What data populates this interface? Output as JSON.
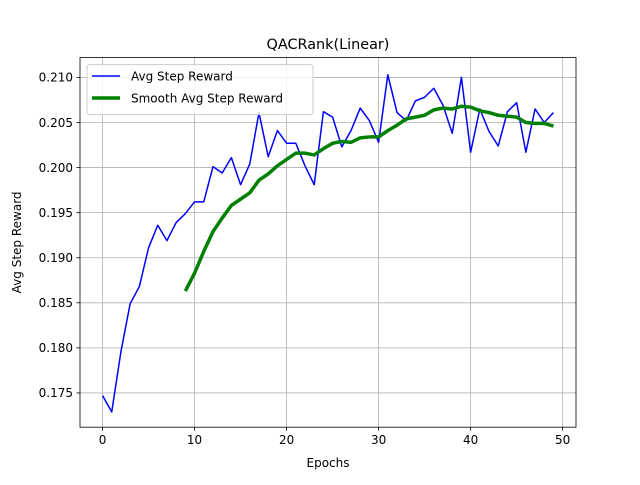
{
  "chart_data": {
    "type": "line",
    "title": "QACRank(Linear)",
    "xlabel": "Epochs",
    "ylabel": "Avg Step Reward",
    "xlim": [
      -2.45,
      51.45
    ],
    "ylim": [
      0.1712,
      0.2122
    ],
    "grid": true,
    "legend_position": "upper-left",
    "x_ticks": [
      0,
      10,
      20,
      30,
      40,
      50
    ],
    "y_ticks": [
      0.175,
      0.18,
      0.185,
      0.19,
      0.195,
      0.2,
      0.205,
      0.21
    ],
    "y_tick_labels": [
      "0.175",
      "0.180",
      "0.185",
      "0.190",
      "0.195",
      "0.200",
      "0.205",
      "0.210"
    ],
    "series": [
      {
        "name": "Avg Step Reward",
        "color": "#0000ff",
        "x": [
          0,
          1,
          2,
          3,
          4,
          5,
          6,
          7,
          8,
          9,
          10,
          11,
          12,
          13,
          14,
          15,
          16,
          17,
          18,
          19,
          20,
          21,
          22,
          23,
          24,
          25,
          26,
          27,
          28,
          29,
          30,
          31,
          32,
          33,
          34,
          35,
          36,
          37,
          38,
          39,
          40,
          41,
          42,
          43,
          44,
          45,
          46,
          47,
          48,
          49
        ],
        "values": [
          0.1747,
          0.1729,
          0.1796,
          0.1849,
          0.1868,
          0.1911,
          0.1936,
          0.1919,
          0.1939,
          0.1949,
          0.1962,
          0.1962,
          0.2001,
          0.1994,
          0.2011,
          0.1981,
          0.2004,
          0.2061,
          0.2012,
          0.2041,
          0.2027,
          0.2027,
          0.2002,
          0.1981,
          0.2062,
          0.2056,
          0.2023,
          0.2041,
          0.2066,
          0.2052,
          0.2028,
          0.2103,
          0.2061,
          0.2052,
          0.2074,
          0.2078,
          0.2088,
          0.2069,
          0.2038,
          0.21,
          0.2017,
          0.2065,
          0.204,
          0.2024,
          0.2062,
          0.2072,
          0.2017,
          0.2065,
          0.205,
          0.2061
        ]
      },
      {
        "name": "Smooth Avg Step Reward",
        "color": "#008000",
        "x": [
          9,
          10,
          11,
          12,
          13,
          14,
          15,
          16,
          17,
          18,
          19,
          20,
          21,
          22,
          23,
          24,
          25,
          26,
          27,
          28,
          29,
          30,
          31,
          32,
          33,
          34,
          35,
          36,
          37,
          38,
          39,
          40,
          41,
          42,
          43,
          44,
          45,
          46,
          47,
          48,
          49
        ],
        "values": [
          0.1863,
          0.1883,
          0.1907,
          0.1929,
          0.1944,
          0.1958,
          0.1965,
          0.1972,
          0.1986,
          0.1993,
          0.2002,
          0.2009,
          0.2016,
          0.2016,
          0.2014,
          0.2021,
          0.2027,
          0.2029,
          0.2028,
          0.2033,
          0.2034,
          0.2034,
          0.2041,
          0.2047,
          0.2054,
          0.2056,
          0.2058,
          0.2064,
          0.2066,
          0.2065,
          0.2068,
          0.2067,
          0.2063,
          0.2061,
          0.2058,
          0.2057,
          0.2056,
          0.205,
          0.2049,
          0.2049,
          0.2046
        ]
      }
    ]
  }
}
